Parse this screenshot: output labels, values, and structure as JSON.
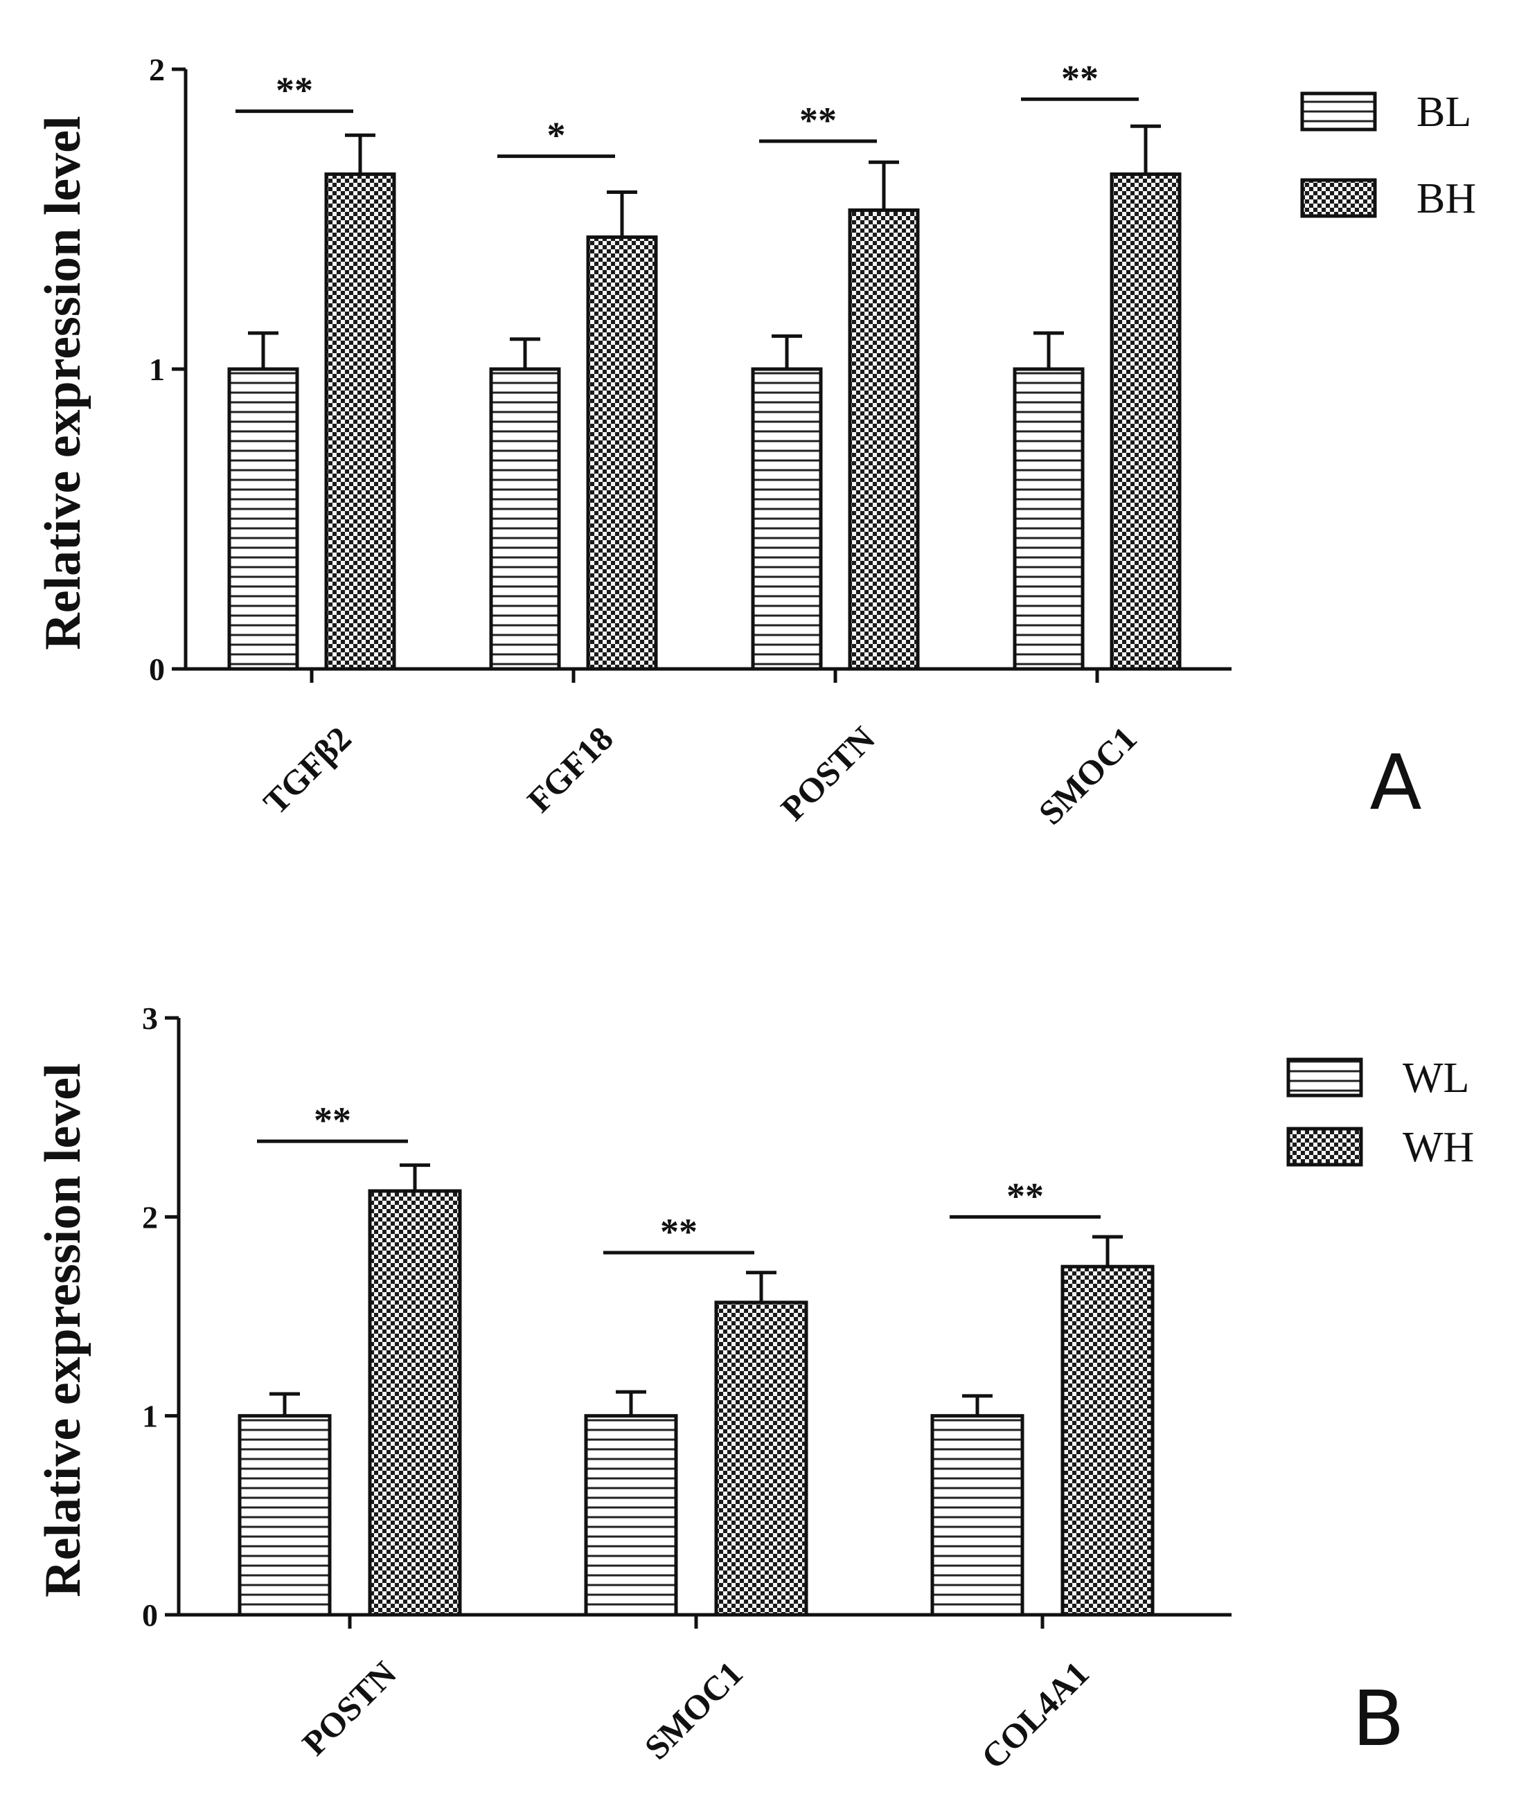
{
  "chart_data": [
    {
      "type": "bar",
      "panel": "A",
      "ylabel": "Relative expression level",
      "ylim": [
        0,
        2
      ],
      "yticks": [
        0,
        1,
        2
      ],
      "categories": [
        "TGFβ2",
        "FGF18",
        "POSTN",
        "SMOC1"
      ],
      "series": [
        {
          "name": "BL",
          "pattern": "hstripes",
          "values": [
            1.0,
            1.0,
            1.0,
            1.0
          ],
          "errors": [
            0.12,
            0.1,
            0.11,
            0.12
          ]
        },
        {
          "name": "BH",
          "pattern": "checker",
          "values": [
            1.65,
            1.44,
            1.53,
            1.65
          ],
          "errors": [
            0.13,
            0.15,
            0.16,
            0.16
          ]
        }
      ],
      "significance": [
        "**",
        "*",
        "**",
        "**"
      ],
      "sig_levels": [
        1.86,
        1.71,
        1.76,
        1.9
      ]
    },
    {
      "type": "bar",
      "panel": "B",
      "ylabel": "Relative expression level",
      "ylim": [
        0,
        3
      ],
      "yticks": [
        0,
        1,
        2,
        3
      ],
      "categories": [
        "POSTN",
        "SMOC1",
        "COL4A1"
      ],
      "series": [
        {
          "name": "WL",
          "pattern": "hstripes",
          "values": [
            1.0,
            1.0,
            1.0
          ],
          "errors": [
            0.11,
            0.12,
            0.1
          ]
        },
        {
          "name": "WH",
          "pattern": "checker",
          "values": [
            2.13,
            1.57,
            1.75
          ],
          "errors": [
            0.13,
            0.15,
            0.15
          ]
        }
      ],
      "significance": [
        "**",
        "**",
        "**"
      ],
      "sig_levels": [
        2.38,
        1.82,
        2.0
      ]
    }
  ]
}
